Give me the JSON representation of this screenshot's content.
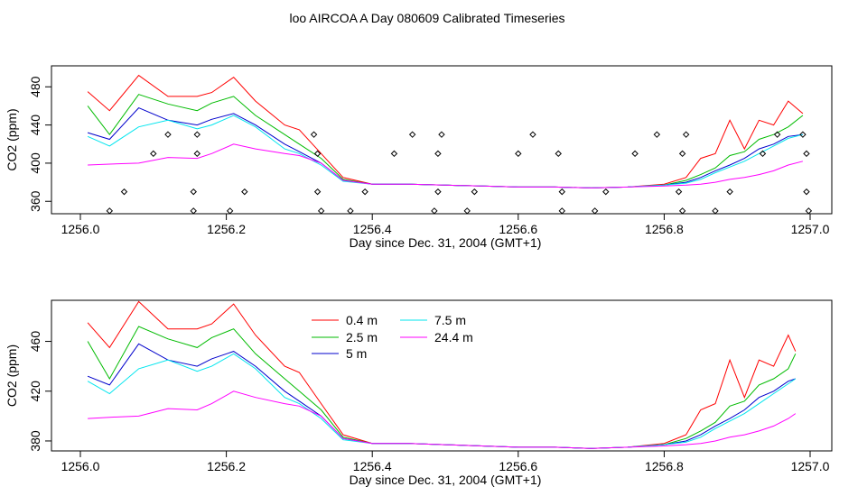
{
  "figure_title": "loo AIRCOA A  Day 080609  Calibrated Timeseries",
  "colors": {
    "0.4 m": "#ff0000",
    "2.5 m": "#00bb00",
    "5 m": "#0000cc",
    "7.5 m": "#00e5ee",
    "24.4 m": "#ff00ff",
    "marker": "#000000"
  },
  "chart_data": [
    {
      "type": "line",
      "title": "",
      "xlabel": "Day since Dec. 31, 2004 (GMT+1)",
      "ylabel": "CO2 (ppm)",
      "xlim": [
        1256.0,
        1257.0
      ],
      "ylim": [
        347,
        502
      ],
      "xticks": [
        "1256.0",
        "1256.2",
        "1256.4",
        "1256.6",
        "1256.8",
        "1257.0"
      ],
      "yticks": [
        "360",
        "400",
        "440",
        "480"
      ],
      "legend": null,
      "series": [
        {
          "name": "0.4 m",
          "x": [
            1256.01,
            1256.04,
            1256.08,
            1256.12,
            1256.16,
            1256.18,
            1256.21,
            1256.24,
            1256.28,
            1256.3,
            1256.33,
            1256.36,
            1256.4,
            1256.45,
            1256.5,
            1256.55,
            1256.6,
            1256.65,
            1256.7,
            1256.75,
            1256.8,
            1256.83,
            1256.85,
            1256.87,
            1256.89,
            1256.91,
            1256.93,
            1256.95,
            1256.97,
            1256.99
          ],
          "y": [
            475,
            455,
            492,
            470,
            470,
            474,
            490,
            465,
            440,
            435,
            410,
            385,
            378,
            378,
            377,
            376,
            375,
            375,
            374,
            375,
            378,
            385,
            405,
            410,
            445,
            415,
            445,
            440,
            465,
            452
          ]
        },
        {
          "name": "2.5 m",
          "x": [
            1256.01,
            1256.04,
            1256.08,
            1256.12,
            1256.16,
            1256.18,
            1256.21,
            1256.24,
            1256.28,
            1256.3,
            1256.33,
            1256.36,
            1256.4,
            1256.45,
            1256.5,
            1256.55,
            1256.6,
            1256.65,
            1256.7,
            1256.75,
            1256.8,
            1256.83,
            1256.85,
            1256.87,
            1256.89,
            1256.91,
            1256.93,
            1256.95,
            1256.97,
            1256.99
          ],
          "y": [
            460,
            430,
            472,
            462,
            455,
            463,
            470,
            450,
            430,
            420,
            405,
            383,
            378,
            378,
            377,
            376,
            375,
            375,
            374,
            375,
            377,
            382,
            388,
            395,
            408,
            412,
            425,
            430,
            438,
            450
          ]
        },
        {
          "name": "5 m",
          "x": [
            1256.01,
            1256.04,
            1256.08,
            1256.12,
            1256.16,
            1256.18,
            1256.21,
            1256.24,
            1256.28,
            1256.3,
            1256.33,
            1256.36,
            1256.4,
            1256.45,
            1256.5,
            1256.55,
            1256.6,
            1256.65,
            1256.7,
            1256.75,
            1256.8,
            1256.83,
            1256.85,
            1256.87,
            1256.89,
            1256.91,
            1256.93,
            1256.95,
            1256.97,
            1256.99
          ],
          "y": [
            432,
            425,
            458,
            445,
            440,
            446,
            452,
            440,
            420,
            412,
            400,
            382,
            378,
            378,
            377,
            376,
            375,
            375,
            374,
            375,
            377,
            380,
            385,
            392,
            398,
            405,
            415,
            420,
            428,
            430
          ]
        },
        {
          "name": "7.5 m",
          "x": [
            1256.01,
            1256.04,
            1256.08,
            1256.12,
            1256.16,
            1256.18,
            1256.21,
            1256.24,
            1256.28,
            1256.3,
            1256.33,
            1256.36,
            1256.4,
            1256.45,
            1256.5,
            1256.55,
            1256.6,
            1256.65,
            1256.7,
            1256.75,
            1256.8,
            1256.83,
            1256.85,
            1256.87,
            1256.89,
            1256.91,
            1256.93,
            1256.95,
            1256.97,
            1256.99
          ],
          "y": [
            428,
            418,
            438,
            445,
            436,
            440,
            450,
            438,
            415,
            410,
            398,
            381,
            378,
            378,
            377,
            376,
            375,
            375,
            374,
            375,
            377,
            379,
            383,
            390,
            396,
            402,
            410,
            418,
            426,
            430
          ]
        },
        {
          "name": "24.4 m",
          "x": [
            1256.01,
            1256.04,
            1256.08,
            1256.12,
            1256.16,
            1256.18,
            1256.21,
            1256.24,
            1256.28,
            1256.3,
            1256.33,
            1256.36,
            1256.4,
            1256.45,
            1256.5,
            1256.55,
            1256.6,
            1256.65,
            1256.7,
            1256.75,
            1256.8,
            1256.83,
            1256.85,
            1256.87,
            1256.89,
            1256.91,
            1256.93,
            1256.95,
            1256.97,
            1256.99
          ],
          "y": [
            398,
            399,
            400,
            406,
            405,
            410,
            420,
            415,
            410,
            408,
            400,
            382,
            378,
            378,
            377,
            376,
            375,
            375,
            374,
            375,
            376,
            377,
            378,
            380,
            383,
            385,
            388,
            392,
            398,
            402
          ]
        }
      ],
      "markers": {
        "x": [
          1256.04,
          1256.06,
          1256.1,
          1256.12,
          1256.155,
          1256.155,
          1256.16,
          1256.16,
          1256.205,
          1256.225,
          1256.32,
          1256.325,
          1256.325,
          1256.33,
          1256.37,
          1256.39,
          1256.43,
          1256.455,
          1256.485,
          1256.49,
          1256.49,
          1256.495,
          1256.53,
          1256.54,
          1256.6,
          1256.62,
          1256.655,
          1256.66,
          1256.66,
          1256.705,
          1256.72,
          1256.76,
          1256.79,
          1256.82,
          1256.825,
          1256.825,
          1256.83,
          1256.87,
          1256.89,
          1256.935,
          1256.955,
          1256.99,
          1256.995,
          1256.995,
          1256.998
        ],
        "y": [
          350,
          370,
          410,
          430,
          350,
          370,
          410,
          430,
          350,
          370,
          430,
          410,
          370,
          350,
          350,
          370,
          410,
          430,
          350,
          370,
          410,
          430,
          350,
          370,
          410,
          430,
          410,
          370,
          350,
          350,
          370,
          410,
          430,
          370,
          350,
          410,
          430,
          350,
          370,
          410,
          430,
          430,
          410,
          370,
          350
        ]
      }
    },
    {
      "type": "line",
      "title": "",
      "xlabel": "Day since Dec. 31, 2004 (GMT+1)",
      "ylabel": "CO2 (ppm)",
      "xlim": [
        1256.0,
        1257.0
      ],
      "ylim": [
        372,
        493
      ],
      "xticks": [
        "1256.0",
        "1256.2",
        "1256.4",
        "1256.6",
        "1256.8",
        "1257.0"
      ],
      "yticks": [
        "380",
        "420",
        "460"
      ],
      "legend": "top-center",
      "legend_entries": [
        "0.4 m",
        "2.5 m",
        "5 m",
        "7.5 m",
        "24.4 m"
      ],
      "series": [
        {
          "name": "0.4 m",
          "x": [
            1256.01,
            1256.04,
            1256.08,
            1256.12,
            1256.16,
            1256.18,
            1256.21,
            1256.24,
            1256.28,
            1256.3,
            1256.33,
            1256.36,
            1256.4,
            1256.45,
            1256.5,
            1256.55,
            1256.6,
            1256.65,
            1256.7,
            1256.75,
            1256.8,
            1256.83,
            1256.85,
            1256.87,
            1256.89,
            1256.91,
            1256.93,
            1256.95,
            1256.97,
            1256.98
          ],
          "y": [
            475,
            455,
            492,
            470,
            470,
            474,
            490,
            465,
            440,
            435,
            410,
            385,
            378,
            378,
            377,
            376,
            375,
            375,
            374,
            375,
            378,
            385,
            405,
            410,
            445,
            415,
            445,
            440,
            465,
            452
          ]
        },
        {
          "name": "2.5 m",
          "x": [
            1256.01,
            1256.04,
            1256.08,
            1256.12,
            1256.16,
            1256.18,
            1256.21,
            1256.24,
            1256.28,
            1256.3,
            1256.33,
            1256.36,
            1256.4,
            1256.45,
            1256.5,
            1256.55,
            1256.6,
            1256.65,
            1256.7,
            1256.75,
            1256.8,
            1256.83,
            1256.85,
            1256.87,
            1256.89,
            1256.91,
            1256.93,
            1256.95,
            1256.97,
            1256.98
          ],
          "y": [
            460,
            430,
            472,
            462,
            455,
            463,
            470,
            450,
            430,
            420,
            405,
            383,
            378,
            378,
            377,
            376,
            375,
            375,
            374,
            375,
            377,
            382,
            388,
            395,
            408,
            412,
            425,
            430,
            438,
            450
          ]
        },
        {
          "name": "5 m",
          "x": [
            1256.01,
            1256.04,
            1256.08,
            1256.12,
            1256.16,
            1256.18,
            1256.21,
            1256.24,
            1256.28,
            1256.3,
            1256.33,
            1256.36,
            1256.4,
            1256.45,
            1256.5,
            1256.55,
            1256.6,
            1256.65,
            1256.7,
            1256.75,
            1256.8,
            1256.83,
            1256.85,
            1256.87,
            1256.89,
            1256.91,
            1256.93,
            1256.95,
            1256.97,
            1256.98
          ],
          "y": [
            432,
            425,
            458,
            445,
            440,
            446,
            452,
            440,
            420,
            412,
            400,
            382,
            378,
            378,
            377,
            376,
            375,
            375,
            374,
            375,
            377,
            380,
            385,
            392,
            398,
            405,
            415,
            420,
            428,
            430
          ]
        },
        {
          "name": "7.5 m",
          "x": [
            1256.01,
            1256.04,
            1256.08,
            1256.12,
            1256.16,
            1256.18,
            1256.21,
            1256.24,
            1256.28,
            1256.3,
            1256.33,
            1256.36,
            1256.4,
            1256.45,
            1256.5,
            1256.55,
            1256.6,
            1256.65,
            1256.7,
            1256.75,
            1256.8,
            1256.83,
            1256.85,
            1256.87,
            1256.89,
            1256.91,
            1256.93,
            1256.95,
            1256.97,
            1256.98
          ],
          "y": [
            428,
            418,
            438,
            445,
            436,
            440,
            450,
            438,
            415,
            410,
            398,
            381,
            378,
            378,
            377,
            376,
            375,
            375,
            374,
            375,
            377,
            379,
            383,
            390,
            396,
            402,
            410,
            418,
            426,
            430
          ]
        },
        {
          "name": "24.4 m",
          "x": [
            1256.01,
            1256.04,
            1256.08,
            1256.12,
            1256.16,
            1256.18,
            1256.21,
            1256.24,
            1256.28,
            1256.3,
            1256.33,
            1256.36,
            1256.4,
            1256.45,
            1256.5,
            1256.55,
            1256.6,
            1256.65,
            1256.7,
            1256.75,
            1256.8,
            1256.83,
            1256.85,
            1256.87,
            1256.89,
            1256.91,
            1256.93,
            1256.95,
            1256.97,
            1256.98
          ],
          "y": [
            398,
            399,
            400,
            406,
            405,
            410,
            420,
            415,
            410,
            408,
            400,
            382,
            378,
            378,
            377,
            376,
            375,
            375,
            374,
            375,
            376,
            377,
            378,
            380,
            383,
            385,
            388,
            392,
            398,
            402
          ]
        }
      ]
    }
  ]
}
